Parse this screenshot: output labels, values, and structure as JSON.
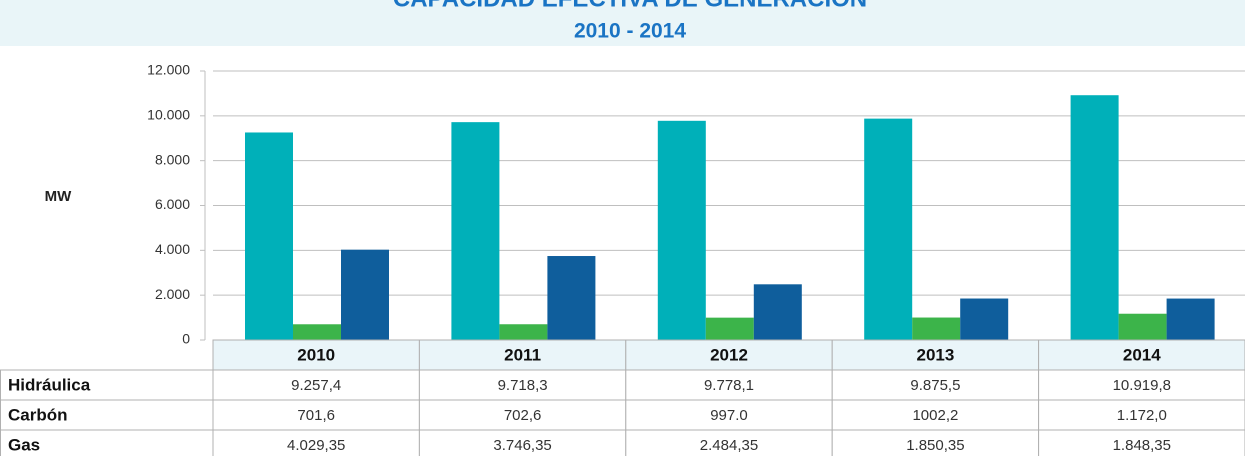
{
  "chart_data": {
    "type": "bar",
    "title": "CAPACIDAD EFECTIVA DE GENERACIÓN",
    "subtitle": "2010 - 2014",
    "y_label": "MW",
    "categories": [
      "2010",
      "2011",
      "2012",
      "2013",
      "2014"
    ],
    "series": [
      {
        "name": "Hidráulica",
        "color": "#00b0b9",
        "values": [
          9257.4,
          9718.3,
          9778.1,
          9875.5,
          10919.8
        ],
        "value_labels": [
          "9.257,4",
          "9.718,3",
          "9.778,1",
          "9.875,5",
          "10.919,8"
        ]
      },
      {
        "name": "Carbón",
        "color": "#3cb44a",
        "values": [
          701.6,
          702.6,
          997.0,
          1002.2,
          1172.0
        ],
        "value_labels": [
          "701,6",
          "702,6",
          "997.0",
          "1002,2",
          "1.172,0"
        ]
      },
      {
        "name": "Gas",
        "color": "#0f5e9c",
        "values": [
          4029.35,
          3746.35,
          2484.35,
          1850.35,
          1848.35
        ],
        "value_labels": [
          "4.029,35",
          "3.746,35",
          "2.484,35",
          "1.850,35",
          "1.848,35"
        ]
      }
    ],
    "ylim": [
      0,
      12000
    ],
    "yticks": [
      0,
      {
        "value": 2000,
        "label": "2.000"
      },
      {
        "value": 4000,
        "label": "4.000"
      },
      {
        "value": 6000,
        "label": "6.000"
      },
      {
        "value": 8000,
        "label": "8.000"
      },
      {
        "value": 10000,
        "label": "10.000"
      },
      {
        "value": 12000,
        "label": "12.000"
      }
    ],
    "grid": true
  }
}
